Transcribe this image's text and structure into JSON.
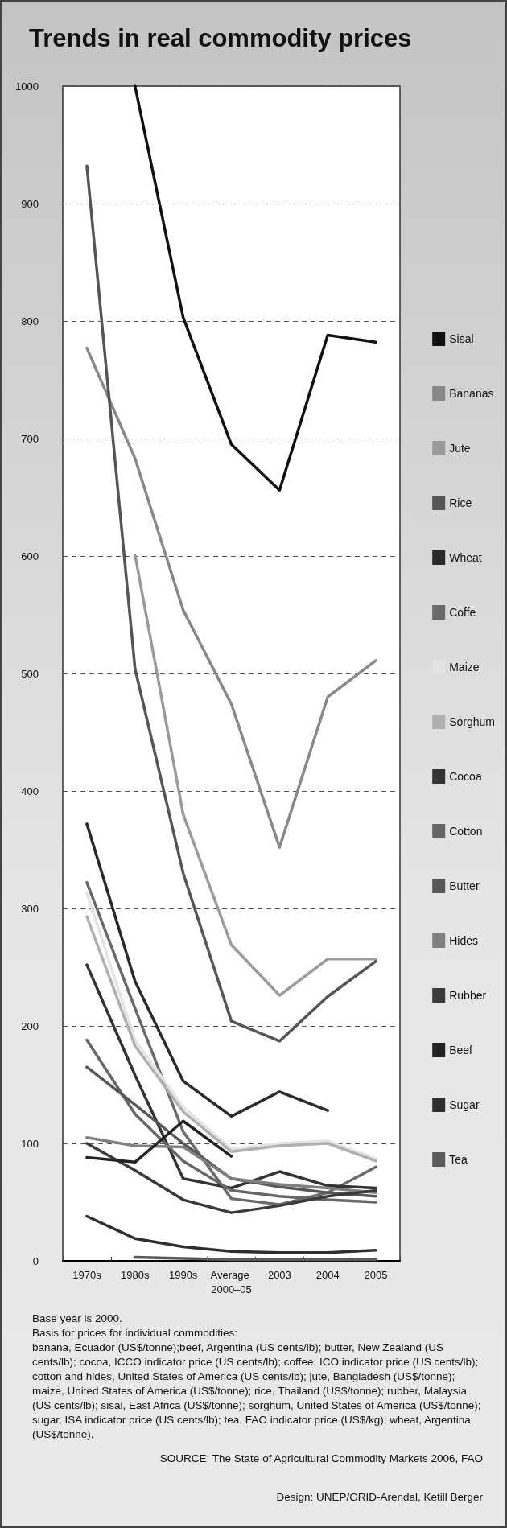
{
  "chart_data": {
    "type": "line",
    "title": "Trends in real commodity prices",
    "categories": [
      "1970s",
      "1980s",
      "1990s",
      "Average 2000–05",
      "2003",
      "2004",
      "2005"
    ],
    "ylim": [
      0,
      1000
    ],
    "yticks": [
      0,
      100,
      200,
      300,
      400,
      500,
      600,
      700,
      800,
      900,
      1000
    ],
    "grid": "y",
    "legend": "right",
    "marker": "none",
    "line_style": "solid",
    "series": [
      {
        "name": "Sisal",
        "color": "#111111",
        "values": [
          null,
          1000,
          803,
          695,
          656,
          788,
          782
        ]
      },
      {
        "name": "Bananas",
        "color": "#888888",
        "values": [
          777,
          683,
          554,
          474,
          352,
          480,
          511
        ]
      },
      {
        "name": "Jute",
        "color": "#9a9a9a",
        "values": [
          null,
          601,
          380,
          269,
          226,
          257,
          257
        ]
      },
      {
        "name": "Rice",
        "color": "#555555",
        "values": [
          932,
          504,
          330,
          204,
          187,
          225,
          255
        ]
      },
      {
        "name": "Wheat",
        "color": "#2a2a2a",
        "values": [
          372,
          238,
          153,
          123,
          144,
          128,
          null
        ]
      },
      {
        "name": "Coffe",
        "color": "#6a6a6a",
        "values": [
          322,
          215,
          110,
          53,
          48,
          58,
          80
        ]
      },
      {
        "name": "Maize",
        "color": "#e4e4e4",
        "values": [
          313,
          188,
          131,
          95,
          100,
          102,
          87
        ]
      },
      {
        "name": "Sorghum",
        "color": "#b0b0b0",
        "values": [
          293,
          183,
          127,
          93,
          98,
          100,
          85
        ]
      },
      {
        "name": "Cocoa",
        "color": "#333333",
        "values": [
          252,
          158,
          70,
          62,
          76,
          64,
          62
        ]
      },
      {
        "name": "Cotton",
        "color": "#666666",
        "values": [
          188,
          125,
          85,
          60,
          55,
          52,
          50
        ]
      },
      {
        "name": "Butter",
        "color": "#575757",
        "values": [
          165,
          133,
          100,
          70,
          63,
          58,
          55
        ]
      },
      {
        "name": "Hides",
        "color": "#808080",
        "values": [
          105,
          98,
          97,
          70,
          65,
          62,
          58
        ]
      },
      {
        "name": "Rubber",
        "color": "#3a3a3a",
        "values": [
          100,
          77,
          52,
          41,
          47,
          55,
          60
        ]
      },
      {
        "name": "Beef",
        "color": "#222222",
        "values": [
          88,
          84,
          119,
          89,
          null,
          null,
          null
        ]
      },
      {
        "name": "Sugar",
        "color": "#2e2e2e",
        "values": [
          38,
          19,
          12,
          8,
          7,
          7,
          9
        ]
      },
      {
        "name": "Tea",
        "color": "#5a5a5a",
        "values": [
          null,
          3,
          2,
          1,
          1,
          1,
          1
        ]
      }
    ],
    "annotations": [
      "Base year is 2000.",
      "Basis for prices for individual commodities:",
      "banana, Ecuador (US$/tonne);beef, Argentina (US cents/lb); butter, New Zealand (US cents/lb); cocoa, ICCO indicator price (US cents/lb); coffee, ICO indicator price (US cents/lb); cotton and hides, United States of America (US cents/lb); jute, Bangladesh (US$/tonne); maize, United States of America (US$/tonne); rice, Thailand (US$/tonne); rubber, Malaysia (US cents/lb); sisal, East Africa (US$/tonne); sorghum, United States of America (US$/tonne); sugar, ISA indicator price (US cents/lb); tea, FAO indicator price (US$/kg); wheat, Argentina (US$/tonne).",
      "SOURCE: The State of Agricultural Commodity Markets 2006, FAO",
      "Design: UNEP/GRID-Arendal, Ketill Berger"
    ]
  }
}
